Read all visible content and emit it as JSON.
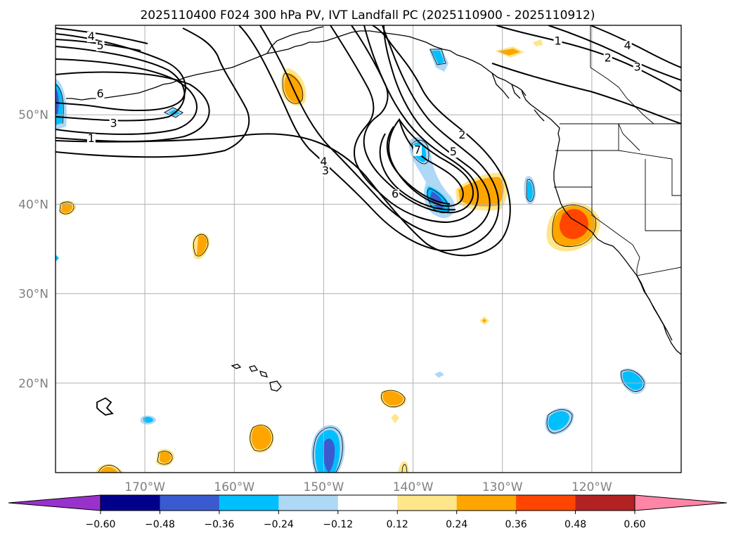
{
  "title": "2025110400 F024 300 hPa PV, IVT Landfall PC (2025110900 - 2025110912)",
  "map": {
    "projection": "PlateCarree",
    "lon_range": [
      -180,
      -110
    ],
    "lat_range": [
      10,
      60
    ],
    "lat_ticks": [
      {
        "value": 20,
        "label": "20°N"
      },
      {
        "value": 30,
        "label": "30°N"
      },
      {
        "value": 40,
        "label": "40°N"
      },
      {
        "value": 50,
        "label": "50°N"
      }
    ],
    "lon_ticks": [
      {
        "value": -170,
        "label": "170°W"
      },
      {
        "value": -160,
        "label": "160°W"
      },
      {
        "value": -150,
        "label": "150°W"
      },
      {
        "value": -140,
        "label": "140°W"
      },
      {
        "value": -130,
        "label": "130°W"
      },
      {
        "value": -120,
        "label": "120°W"
      }
    ],
    "pv_contour_labels": [
      {
        "text": "4",
        "lon": -176,
        "lat": 58.5
      },
      {
        "text": "5",
        "lon": -175,
        "lat": 57.5
      },
      {
        "text": "6",
        "lon": -175,
        "lat": 52.1
      },
      {
        "text": "3",
        "lon": -173.5,
        "lat": 48.8
      },
      {
        "text": "1",
        "lon": -176,
        "lat": 47.1
      },
      {
        "text": "4",
        "lon": -150,
        "lat": 44.5
      },
      {
        "text": "3",
        "lon": -149.8,
        "lat": 43.5
      },
      {
        "text": "6",
        "lon": -142,
        "lat": 40.9
      },
      {
        "text": "2",
        "lon": -134.5,
        "lat": 47.5
      },
      {
        "text": "5",
        "lon": -135.5,
        "lat": 45.6
      },
      {
        "text": "7",
        "lon": -139.5,
        "lat": 45.8
      },
      {
        "text": "1",
        "lon": -123.8,
        "lat": 58
      },
      {
        "text": "2",
        "lon": -118.2,
        "lat": 56.1
      },
      {
        "text": "4",
        "lon": -116,
        "lat": 57.5
      },
      {
        "text": "3",
        "lon": -114.9,
        "lat": 55.1
      }
    ]
  },
  "colorbar": {
    "levels": [
      -0.6,
      -0.48,
      -0.36,
      -0.24,
      -0.12,
      0.12,
      0.24,
      0.36,
      0.48,
      0.6
    ],
    "tick_labels": [
      "−0.60",
      "−0.48",
      "−0.36",
      "−0.24",
      "−0.12",
      "0.12",
      "0.24",
      "0.36",
      "0.48",
      "0.60"
    ],
    "colors": [
      "#9932cc",
      "#00008b",
      "#3a5bd0",
      "#00bfff",
      "#add8f6",
      "#ffffff",
      "#ffe68a",
      "#ffa500",
      "#ff4500",
      "#b22222",
      "#ff85a6"
    ],
    "extend": "both"
  }
}
